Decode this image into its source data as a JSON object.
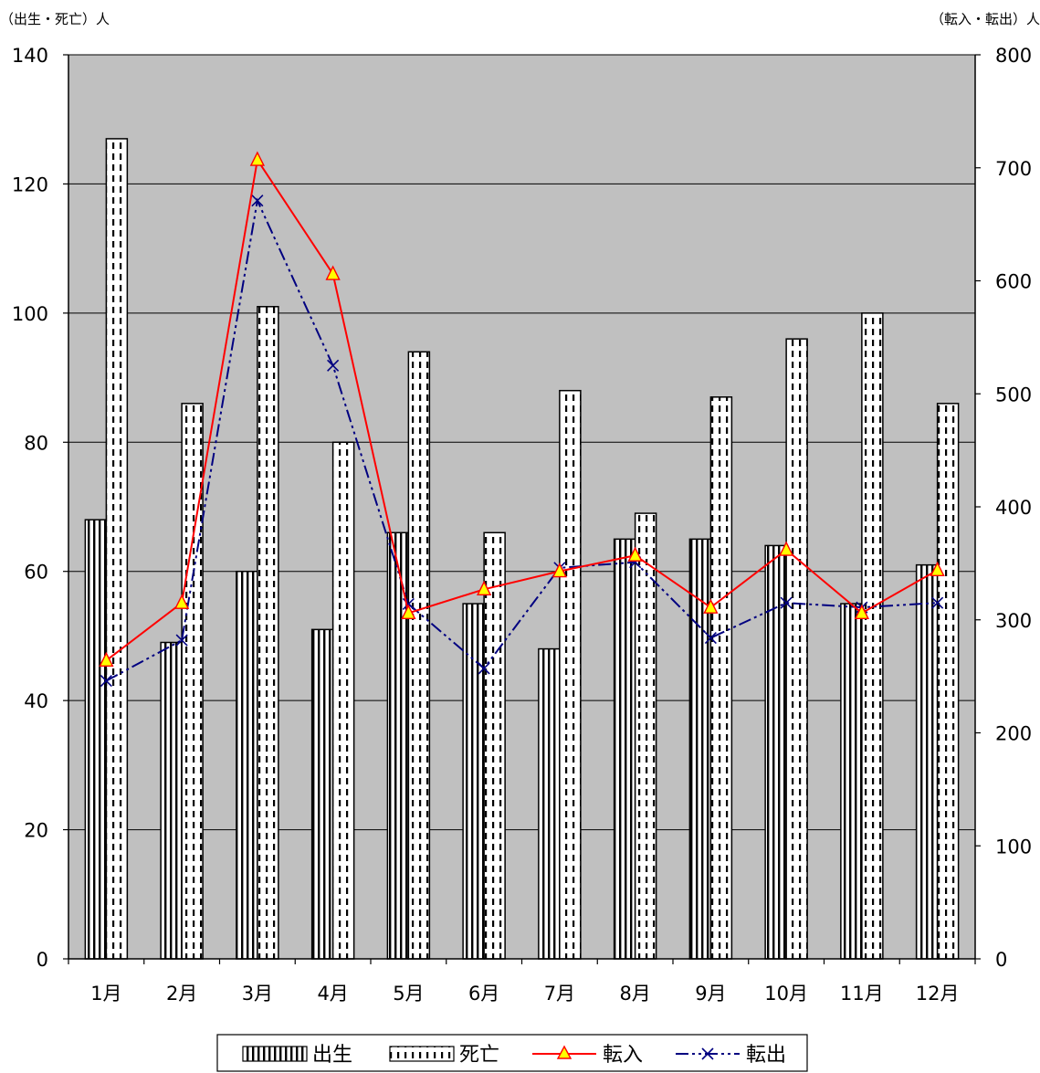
{
  "chart_data": {
    "type": "bar",
    "categories": [
      "1月",
      "2月",
      "3月",
      "4月",
      "5月",
      "6月",
      "7月",
      "8月",
      "9月",
      "10月",
      "11月",
      "12月"
    ],
    "left_axis": {
      "unit_label": "（出生・死亡）人",
      "ylim": [
        0,
        140
      ],
      "ticks": [
        "0",
        "20",
        "40",
        "60",
        "80",
        "100",
        "120",
        "140"
      ]
    },
    "right_axis": {
      "unit_label": "（転入・転出）人",
      "ylim": [
        0,
        800
      ],
      "ticks": [
        "0",
        "100",
        "200",
        "300",
        "400",
        "500",
        "600",
        "700",
        "800"
      ]
    },
    "grid": true,
    "background_color": "#c0c0c0",
    "legend_position": "bottom",
    "series": [
      {
        "name": "出生",
        "kind": "bar",
        "axis": "left",
        "pattern": "vertical-stripes",
        "values": [
          68,
          49,
          60,
          51,
          66,
          55,
          48,
          65,
          65,
          64,
          55,
          61
        ]
      },
      {
        "name": "死亡",
        "kind": "bar",
        "axis": "left",
        "pattern": "dotted-stripes",
        "values": [
          127,
          86,
          101,
          80,
          94,
          66,
          88,
          69,
          87,
          96,
          100,
          86
        ]
      },
      {
        "name": "転入",
        "kind": "line",
        "axis": "right",
        "color": "#ff0000",
        "marker": "triangle",
        "marker_fill": "#ffff00",
        "values": [
          264,
          315,
          707,
          606,
          306,
          327,
          343,
          357,
          311,
          362,
          306,
          344
        ]
      },
      {
        "name": "転出",
        "kind": "line",
        "axis": "right",
        "color": "#000080",
        "marker": "x",
        "line_style": "dash-dot-dot",
        "values": [
          246,
          282,
          671,
          525,
          314,
          257,
          346,
          351,
          284,
          315,
          311,
          315
        ]
      }
    ]
  }
}
